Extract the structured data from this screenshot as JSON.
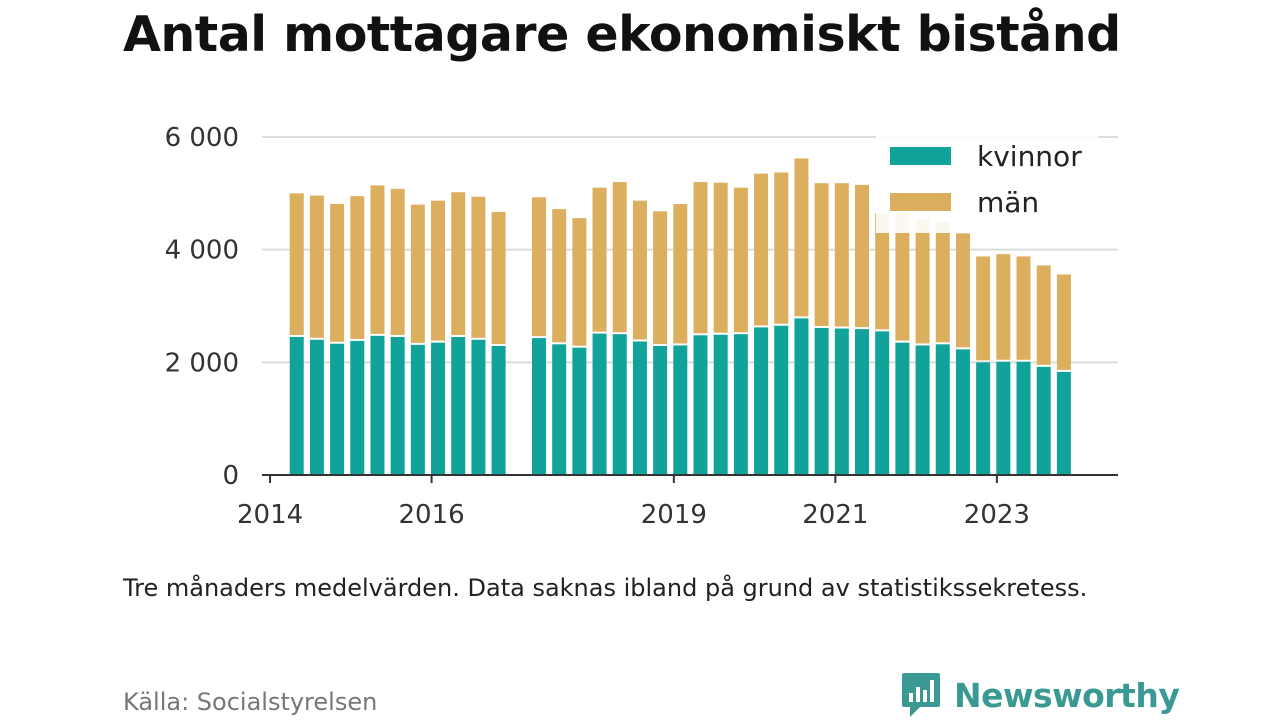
{
  "title": "Antal mottagare ekonomiskt bistånd",
  "note": "Tre månaders medelvärden. Data saknas ibland på grund av statistikssekretess.",
  "source": "Källa: Socialstyrelsen",
  "brand": {
    "name": "Newsworthy",
    "icon": "newsworthy-logo-icon",
    "color": "#3a9a93"
  },
  "chart_data": {
    "type": "bar",
    "stacked": true,
    "x_type": "time",
    "xlim": [
      2013.9,
      2024.5
    ],
    "ylim": [
      0,
      6000
    ],
    "xticks": [
      {
        "value": 2014,
        "label": "2014"
      },
      {
        "value": 2016,
        "label": "2016"
      },
      {
        "value": 2019,
        "label": "2019"
      },
      {
        "value": 2021,
        "label": "2021"
      },
      {
        "value": 2023,
        "label": "2023"
      }
    ],
    "yticks": [
      {
        "value": 0,
        "label": "0"
      },
      {
        "value": 2000,
        "label": "2 000"
      },
      {
        "value": 4000,
        "label": "4 000"
      },
      {
        "value": 6000,
        "label": "6 000"
      }
    ],
    "grid": true,
    "legend_position": "top-right",
    "x": [
      2014.33,
      2014.58,
      2014.83,
      2015.08,
      2015.33,
      2015.58,
      2015.83,
      2016.08,
      2016.33,
      2016.58,
      2016.83,
      2017.33,
      2017.58,
      2017.83,
      2018.08,
      2018.33,
      2018.58,
      2018.83,
      2019.08,
      2019.33,
      2019.58,
      2019.83,
      2020.08,
      2020.33,
      2020.58,
      2020.83,
      2021.08,
      2021.33,
      2021.58,
      2021.83,
      2022.08,
      2022.33,
      2022.58,
      2022.83,
      2023.08,
      2023.33,
      2023.58,
      2023.83
    ],
    "series": [
      {
        "name": "kvinnor",
        "color": "#11a39a",
        "values": [
          2450,
          2400,
          2330,
          2380,
          2470,
          2450,
          2310,
          2350,
          2450,
          2400,
          2290,
          2430,
          2320,
          2260,
          2510,
          2500,
          2370,
          2290,
          2300,
          2480,
          2490,
          2500,
          2620,
          2650,
          2780,
          2610,
          2600,
          2590,
          2550,
          2350,
          2300,
          2320,
          2230,
          2000,
          2010,
          2010,
          1920,
          1830
        ]
      },
      {
        "name": "män",
        "color": "#dcaf5f",
        "values": [
          2550,
          2560,
          2480,
          2570,
          2670,
          2630,
          2490,
          2520,
          2570,
          2540,
          2380,
          2500,
          2400,
          2300,
          2590,
          2700,
          2500,
          2390,
          2510,
          2720,
          2700,
          2600,
          2730,
          2720,
          2840,
          2570,
          2580,
          2560,
          2100,
          2300,
          2250,
          2180,
          2060,
          1880,
          1910,
          1870,
          1800,
          1730
        ]
      }
    ]
  }
}
